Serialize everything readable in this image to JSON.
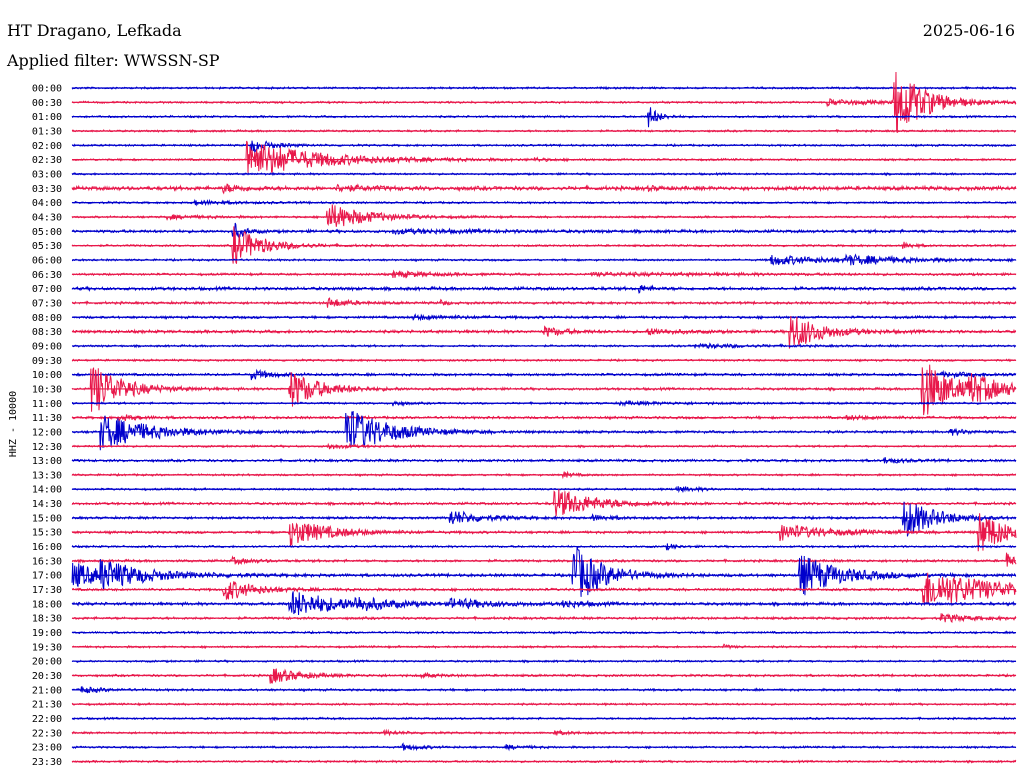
{
  "header": {
    "station": "HT Dragano, Lefkada",
    "date": "2025-06-16",
    "filter": "Applied filter: WWSSN-SP"
  },
  "chart_data": {
    "type": "line",
    "title": "HT Dragano, Lefkada",
    "subtitle": "Applied filter: WWSSN-SP",
    "ylabel": "HHZ - 10000",
    "colors": {
      "even_rows": "#0000cc",
      "odd_rows": "#e8174a"
    },
    "rows": [
      {
        "label": "00:00",
        "noise": 0.8,
        "events": []
      },
      {
        "label": "00:30",
        "noise": 0.8,
        "events": [
          {
            "t": 0.8,
            "a": 3,
            "d": 0.05
          },
          {
            "t": 0.87,
            "a": 38,
            "d": 0.03
          }
        ]
      },
      {
        "label": "01:00",
        "noise": 0.8,
        "events": [
          {
            "t": 0.61,
            "a": 12,
            "d": 0.01
          }
        ]
      },
      {
        "label": "01:30",
        "noise": 0.8,
        "events": []
      },
      {
        "label": "02:00",
        "noise": 0.8,
        "events": [
          {
            "t": 0.19,
            "a": 7,
            "d": 0.02
          }
        ]
      },
      {
        "label": "02:30",
        "noise": 0.8,
        "events": [
          {
            "t": 0.185,
            "a": 20,
            "d": 0.07
          },
          {
            "t": 0.49,
            "a": 2,
            "d": 0.01
          }
        ]
      },
      {
        "label": "03:00",
        "noise": 0.8,
        "events": []
      },
      {
        "label": "03:30",
        "noise": 1.6,
        "events": [
          {
            "t": 0.16,
            "a": 4,
            "d": 0.02
          },
          {
            "t": 0.28,
            "a": 3,
            "d": 0.03
          },
          {
            "t": 0.61,
            "a": 2,
            "d": 0.01
          }
        ]
      },
      {
        "label": "04:00",
        "noise": 0.8,
        "events": [
          {
            "t": 0.13,
            "a": 2,
            "d": 0.04
          }
        ]
      },
      {
        "label": "04:30",
        "noise": 0.8,
        "events": [
          {
            "t": 0.1,
            "a": 2,
            "d": 0.04
          },
          {
            "t": 0.27,
            "a": 14,
            "d": 0.04
          }
        ]
      },
      {
        "label": "05:00",
        "noise": 1.2,
        "events": [
          {
            "t": 0.17,
            "a": 10,
            "d": 0.01
          },
          {
            "t": 0.34,
            "a": 2,
            "d": 0.08
          }
        ]
      },
      {
        "label": "05:30",
        "noise": 0.8,
        "events": [
          {
            "t": 0.17,
            "a": 20,
            "d": 0.03
          },
          {
            "t": 0.88,
            "a": 4,
            "d": 0.01
          }
        ]
      },
      {
        "label": "06:00",
        "noise": 0.8,
        "events": [
          {
            "t": 0.74,
            "a": 5,
            "d": 0.06
          },
          {
            "t": 0.82,
            "a": 4,
            "d": 0.06
          }
        ]
      },
      {
        "label": "06:30",
        "noise": 0.9,
        "events": [
          {
            "t": 0.34,
            "a": 3,
            "d": 0.04
          },
          {
            "t": 0.55,
            "a": 1.5,
            "d": 0.15
          }
        ]
      },
      {
        "label": "07:00",
        "noise": 1.3,
        "events": [
          {
            "t": 0.6,
            "a": 4,
            "d": 0.01
          }
        ]
      },
      {
        "label": "07:30",
        "noise": 1.0,
        "events": [
          {
            "t": 0.27,
            "a": 5,
            "d": 0.02
          },
          {
            "t": 0.39,
            "a": 4,
            "d": 0.005
          }
        ]
      },
      {
        "label": "08:00",
        "noise": 1.0,
        "events": [
          {
            "t": 0.36,
            "a": 2,
            "d": 0.05
          }
        ]
      },
      {
        "label": "08:30",
        "noise": 1.2,
        "events": [
          {
            "t": 0.5,
            "a": 5,
            "d": 0.02
          },
          {
            "t": 0.61,
            "a": 3,
            "d": 0.03
          },
          {
            "t": 0.76,
            "a": 20,
            "d": 0.03
          }
        ]
      },
      {
        "label": "09:00",
        "noise": 0.8,
        "events": [
          {
            "t": 0.66,
            "a": 2,
            "d": 0.06
          }
        ]
      },
      {
        "label": "09:30",
        "noise": 0.8,
        "events": []
      },
      {
        "label": "10:00",
        "noise": 1.0,
        "events": [
          {
            "t": 0.19,
            "a": 5,
            "d": 0.02
          },
          {
            "t": 0.92,
            "a": 2,
            "d": 0.05
          }
        ]
      },
      {
        "label": "10:30",
        "noise": 1.0,
        "events": [
          {
            "t": 0.02,
            "a": 28,
            "d": 0.03
          },
          {
            "t": 0.23,
            "a": 20,
            "d": 0.03
          },
          {
            "t": 0.9,
            "a": 32,
            "d": 0.03
          },
          {
            "t": 0.95,
            "a": 12,
            "d": 0.04
          }
        ]
      },
      {
        "label": "11:00",
        "noise": 0.8,
        "events": [
          {
            "t": 0.34,
            "a": 3,
            "d": 0.01
          },
          {
            "t": 0.58,
            "a": 1.5,
            "d": 0.06
          }
        ]
      },
      {
        "label": "11:30",
        "noise": 1.0,
        "events": [
          {
            "t": 0.05,
            "a": 3,
            "d": 0.02
          },
          {
            "t": 0.82,
            "a": 2,
            "d": 0.03
          }
        ]
      },
      {
        "label": "12:00",
        "noise": 1.0,
        "events": [
          {
            "t": 0.03,
            "a": 18,
            "d": 0.05
          },
          {
            "t": 0.29,
            "a": 26,
            "d": 0.04
          },
          {
            "t": 0.93,
            "a": 3,
            "d": 0.02
          }
        ]
      },
      {
        "label": "12:30",
        "noise": 0.8,
        "events": [
          {
            "t": 0.27,
            "a": 3,
            "d": 0.02
          }
        ]
      },
      {
        "label": "13:00",
        "noise": 1.0,
        "events": [
          {
            "t": 0.86,
            "a": 3,
            "d": 0.02
          }
        ]
      },
      {
        "label": "13:30",
        "noise": 0.8,
        "events": [
          {
            "t": 0.52,
            "a": 3,
            "d": 0.01
          }
        ]
      },
      {
        "label": "14:00",
        "noise": 0.8,
        "events": [
          {
            "t": 0.64,
            "a": 3,
            "d": 0.02
          }
        ]
      },
      {
        "label": "14:30",
        "noise": 1.0,
        "events": [
          {
            "t": 0.51,
            "a": 16,
            "d": 0.04
          }
        ]
      },
      {
        "label": "15:00",
        "noise": 1.0,
        "events": [
          {
            "t": 0.4,
            "a": 8,
            "d": 0.03
          },
          {
            "t": 0.55,
            "a": 3,
            "d": 0.02
          },
          {
            "t": 0.88,
            "a": 22,
            "d": 0.03
          }
        ]
      },
      {
        "label": "15:30",
        "noise": 1.0,
        "events": [
          {
            "t": 0.23,
            "a": 14,
            "d": 0.04
          },
          {
            "t": 0.75,
            "a": 8,
            "d": 0.05
          },
          {
            "t": 0.96,
            "a": 22,
            "d": 0.03
          }
        ]
      },
      {
        "label": "16:00",
        "noise": 0.8,
        "events": [
          {
            "t": 0.63,
            "a": 3,
            "d": 0.01
          }
        ]
      },
      {
        "label": "16:30",
        "noise": 1.0,
        "events": [
          {
            "t": 0.17,
            "a": 3,
            "d": 0.02
          },
          {
            "t": 0.99,
            "a": 8,
            "d": 0.01
          }
        ]
      },
      {
        "label": "17:00",
        "noise": 1.2,
        "events": [
          {
            "t": 0.0,
            "a": 14,
            "d": 0.03
          },
          {
            "t": 0.03,
            "a": 12,
            "d": 0.05
          },
          {
            "t": 0.53,
            "a": 32,
            "d": 0.03
          },
          {
            "t": 0.77,
            "a": 22,
            "d": 0.04
          }
        ]
      },
      {
        "label": "17:30",
        "noise": 1.0,
        "events": [
          {
            "t": 0.16,
            "a": 12,
            "d": 0.03
          },
          {
            "t": 0.9,
            "a": 20,
            "d": 0.08
          }
        ]
      },
      {
        "label": "18:00",
        "noise": 1.2,
        "events": [
          {
            "t": 0.23,
            "a": 14,
            "d": 0.05
          },
          {
            "t": 0.3,
            "a": 5,
            "d": 0.03
          },
          {
            "t": 0.4,
            "a": 5,
            "d": 0.04
          },
          {
            "t": 0.52,
            "a": 4,
            "d": 0.02
          }
        ]
      },
      {
        "label": "18:30",
        "noise": 1.0,
        "events": [
          {
            "t": 0.92,
            "a": 4,
            "d": 0.03
          }
        ]
      },
      {
        "label": "19:00",
        "noise": 0.8,
        "events": []
      },
      {
        "label": "19:30",
        "noise": 0.8,
        "events": [
          {
            "t": 0.69,
            "a": 2,
            "d": 0.01
          }
        ]
      },
      {
        "label": "20:00",
        "noise": 0.8,
        "events": []
      },
      {
        "label": "20:30",
        "noise": 0.9,
        "events": [
          {
            "t": 0.21,
            "a": 8,
            "d": 0.03
          },
          {
            "t": 0.37,
            "a": 2,
            "d": 0.02
          }
        ]
      },
      {
        "label": "21:00",
        "noise": 0.9,
        "events": [
          {
            "t": 0.01,
            "a": 3,
            "d": 0.02
          }
        ]
      },
      {
        "label": "21:30",
        "noise": 0.8,
        "events": []
      },
      {
        "label": "22:00",
        "noise": 0.8,
        "events": []
      },
      {
        "label": "22:30",
        "noise": 0.8,
        "events": [
          {
            "t": 0.33,
            "a": 2,
            "d": 0.02
          },
          {
            "t": 0.51,
            "a": 2,
            "d": 0.02
          }
        ]
      },
      {
        "label": "23:00",
        "noise": 0.8,
        "events": [
          {
            "t": 0.35,
            "a": 3,
            "d": 0.02
          },
          {
            "t": 0.46,
            "a": 2,
            "d": 0.02
          }
        ]
      },
      {
        "label": "23:30",
        "noise": 0.8,
        "events": []
      }
    ]
  }
}
